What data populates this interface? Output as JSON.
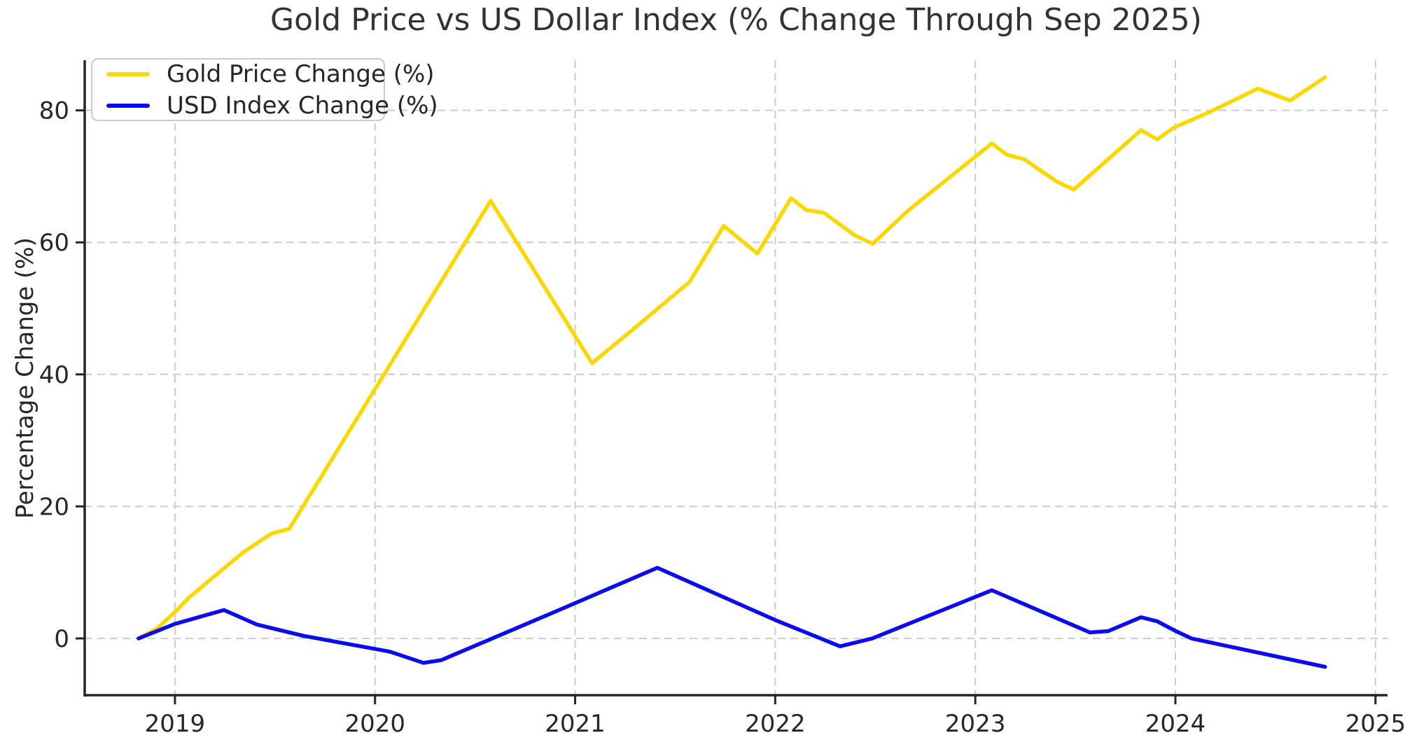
{
  "chart_data": {
    "type": "line",
    "title": "Gold Price vs US Dollar Index (% Change Through Sep 2025)",
    "xlabel": "",
    "ylabel": "Percentage Change (%)",
    "x_ticks": [
      2019,
      2020,
      2021,
      2022,
      2023,
      2024,
      2025
    ],
    "y_ticks": [
      0,
      20,
      40,
      60,
      80
    ],
    "xlim": [
      2018.549,
      2025.06
    ],
    "ylim": [
      -8.6,
      87.6
    ],
    "grid": true,
    "grid_color": "#cccccc",
    "grid_style": "dashed",
    "legend_position": "upper-left",
    "axis_color": "#262626",
    "tick_text_color": "#262626",
    "title_color": "#333333",
    "background_color": "#ffffff",
    "series": [
      {
        "name": "Gold Price Change (%)",
        "color": "#FFD700",
        "x": [
          2018.818,
          2018.91,
          2019.0,
          2019.07,
          2019.339,
          2019.483,
          2019.571,
          2020.578,
          2021.085,
          2021.316,
          2021.571,
          2021.743,
          2021.911,
          2022.079,
          2022.156,
          2022.243,
          2022.401,
          2022.488,
          2022.663,
          2023.083,
          2023.156,
          2023.244,
          2023.408,
          2023.492,
          2023.828,
          2023.909,
          2023.993,
          2024.167,
          2024.412,
          2024.573,
          2024.748
        ],
        "y": [
          0.0,
          1.5,
          4.0,
          6.2,
          13.0,
          15.9,
          16.6,
          66.3,
          41.7,
          47.5,
          54.0,
          62.5,
          58.3,
          66.7,
          64.9,
          64.5,
          61.0,
          59.8,
          64.8,
          75.0,
          73.3,
          72.6,
          69.2,
          68.0,
          77.0,
          75.6,
          77.4,
          79.7,
          83.3,
          81.5,
          85.0
        ]
      },
      {
        "name": "USD Index Change (%)",
        "color": "#0B0BF0",
        "x": [
          2018.818,
          2019.0,
          2019.245,
          2019.41,
          2019.64,
          2020.074,
          2020.242,
          2020.33,
          2020.889,
          2021.411,
          2021.999,
          2022.324,
          2022.485,
          2023.083,
          2023.573,
          2023.664,
          2023.828,
          2023.909,
          2023.996,
          2024.08,
          2024.748
        ],
        "y": [
          0.0,
          2.2,
          4.3,
          2.1,
          0.4,
          -2.0,
          -3.7,
          -3.3,
          3.9,
          10.7,
          2.8,
          -1.2,
          0.0,
          7.3,
          0.9,
          1.1,
          3.2,
          2.6,
          1.2,
          0.0,
          -4.3
        ]
      }
    ]
  }
}
